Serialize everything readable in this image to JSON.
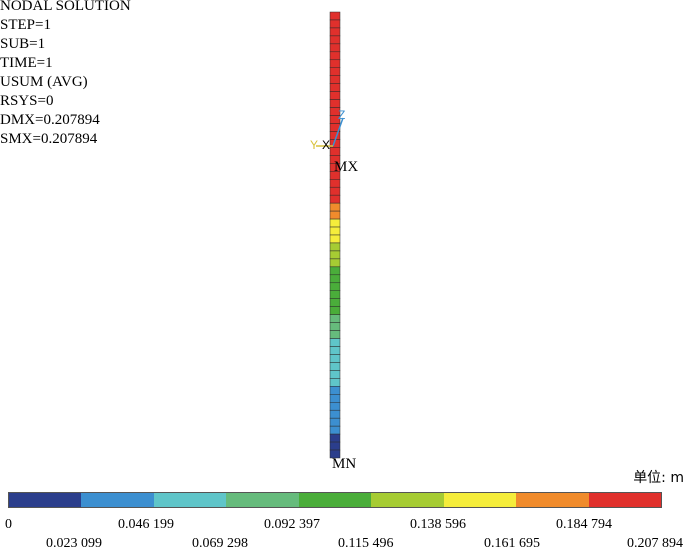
{
  "info": {
    "lines": [
      "NODAL SOLUTION",
      "STEP=1",
      "SUB=1",
      "TIME=1",
      "USUM  (AVG)",
      "RSYS=0",
      "DMX=0.207894",
      "SMX=0.207894"
    ]
  },
  "markers": {
    "max_label": "MX",
    "min_label": "MN"
  },
  "triad": {
    "x": "X",
    "y": "Y",
    "z": "Z"
  },
  "unit_label": "单位: m",
  "legend": {
    "colors": [
      "#2b3e8c",
      "#3c8fd0",
      "#5fc5c9",
      "#66bb7c",
      "#4aad3a",
      "#a6cc33",
      "#f5ed3b",
      "#f08b2c",
      "#e0302c"
    ],
    "ticks_top": [
      "0",
      "0.046 199",
      "0.092 397",
      "0.138 596",
      "0.184 794"
    ],
    "ticks_bottom": [
      "0.023 099",
      "0.069 298",
      "0.115 496",
      "0.161 695",
      "0.207 894"
    ]
  }
}
